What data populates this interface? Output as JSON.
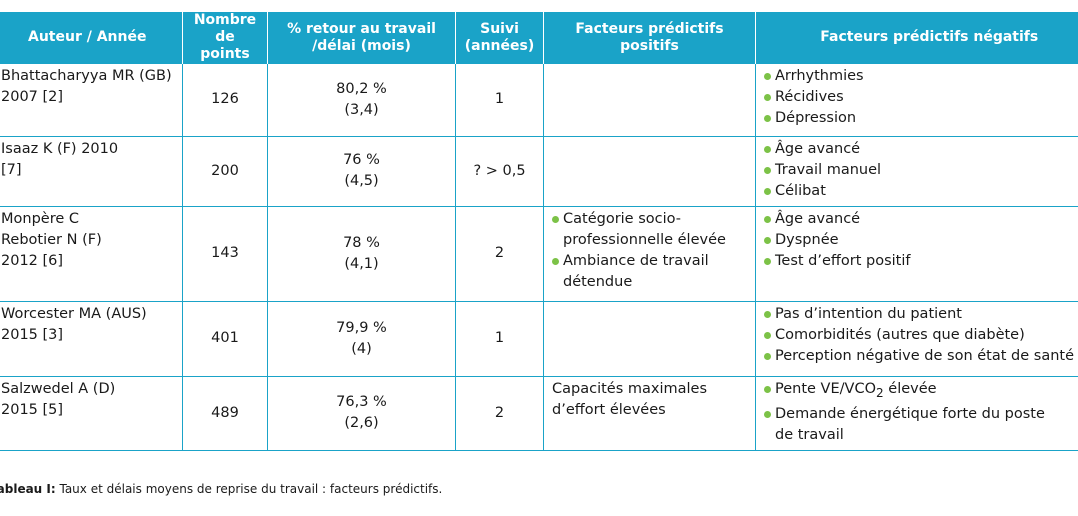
{
  "table": {
    "headers": [
      "Auteur / Année",
      {
        "l1": "Nombre",
        "l2": "de points"
      },
      {
        "l1": "% retour au travail",
        "l2": "/délai (mois)"
      },
      {
        "l1": "Suivi",
        "l2": "(années)"
      },
      {
        "l1": "Facteurs prédictifs",
        "l2": "positifs"
      },
      "Facteurs prédictifs négatifs"
    ],
    "rows": [
      {
        "author": [
          "Bhattacharyya MR (GB)",
          "2007 [2]"
        ],
        "points": "126",
        "rate": "80,2 %",
        "delay": "(3,4)",
        "followup": "1",
        "negative": [
          "Arrhythmies",
          "Récidives",
          "Dépression"
        ]
      },
      {
        "author": [
          "Isaaz K (F) 2010",
          "[7]"
        ],
        "points": "200",
        "rate": "76 %",
        "delay": "(4,5)",
        "followup": "? > 0,5",
        "negative": [
          "Âge avancé",
          "Travail manuel",
          "Célibat"
        ]
      },
      {
        "author": [
          "Monpère C",
          "Rebotier N (F)",
          "2012 [6]"
        ],
        "points": "143",
        "rate": "78 %",
        "delay": "(4,1)",
        "followup": "2",
        "positive": [
          {
            "l1": "Catégorie socio-",
            "l2": "professionnelle élevée"
          },
          {
            "l1": "Ambiance de travail",
            "l2": "détendue"
          }
        ],
        "negative": [
          "Âge avancé",
          "Dyspnée",
          "Test d’effort positif"
        ]
      },
      {
        "author": [
          "Worcester MA (AUS)",
          "2015 [3]"
        ],
        "points": "401",
        "rate": "79,9 %",
        "delay": "(4)",
        "followup": "1",
        "negative": [
          "Pas d’intention du patient",
          "Comorbidités (autres que diabète)",
          "Perception négative de son état de santé"
        ]
      },
      {
        "author": [
          "Salzwedel A (D)",
          "2015 [5]"
        ],
        "points": "489",
        "rate": "76,3 %",
        "delay": "(2,6)",
        "followup": "2",
        "positive_text": [
          "Capacités maximales",
          "d’effort élevées"
        ],
        "negative": [
          {
            "text": "Pente VE/VCO",
            "sub": "2",
            "after": " élevée"
          },
          {
            "l1": "Demande énergétique forte du poste",
            "l2": "de travail"
          }
        ]
      }
    ]
  },
  "caption": {
    "label": "Tableau I:",
    "text": " Taux et délais moyens de reprise du travail : facteurs prédictifs."
  },
  "colors": {
    "header_bg": "#1aa3c8",
    "border": "#1aa3c8",
    "bullet": "#7cc247"
  }
}
